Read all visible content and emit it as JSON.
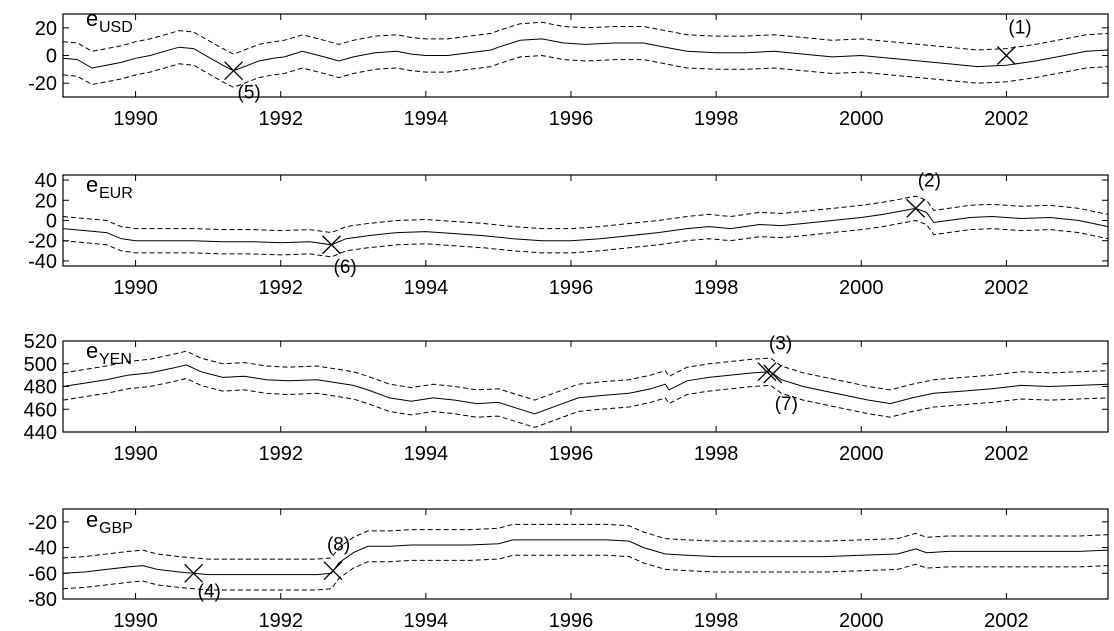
{
  "chart_data": [
    {
      "type": "line",
      "label_base": "e",
      "label_sub": "USD",
      "xlim": [
        1989.0,
        2003.4
      ],
      "ylim": [
        -30,
        30
      ],
      "yticks": [
        20,
        0,
        -20
      ],
      "xticks": [
        1990,
        1992,
        1994,
        1996,
        1998,
        2000,
        2002
      ],
      "band_halfwidth": 12,
      "series": [
        {
          "style": "solid",
          "points": [
            [
              1989.0,
              -2
            ],
            [
              1989.2,
              -3
            ],
            [
              1989.4,
              -9
            ],
            [
              1989.6,
              -7
            ],
            [
              1989.8,
              -5
            ],
            [
              1990.0,
              -2
            ],
            [
              1990.2,
              0
            ],
            [
              1990.4,
              3
            ],
            [
              1990.6,
              6
            ],
            [
              1990.8,
              5
            ],
            [
              1991.0,
              -1
            ],
            [
              1991.2,
              -7
            ],
            [
              1991.35,
              -11
            ],
            [
              1991.5,
              -8
            ],
            [
              1991.7,
              -4
            ],
            [
              1991.9,
              -2
            ],
            [
              1992.05,
              -1
            ],
            [
              1992.3,
              3
            ],
            [
              1992.6,
              -1
            ],
            [
              1992.8,
              -4
            ],
            [
              1993.0,
              -1
            ],
            [
              1993.3,
              2
            ],
            [
              1993.6,
              3
            ],
            [
              1993.8,
              1
            ],
            [
              1994.0,
              0
            ],
            [
              1994.3,
              0
            ],
            [
              1994.6,
              2
            ],
            [
              1994.9,
              4
            ],
            [
              1995.0,
              6
            ],
            [
              1995.3,
              11
            ],
            [
              1995.6,
              12
            ],
            [
              1995.9,
              9
            ],
            [
              1996.2,
              8
            ],
            [
              1996.6,
              9
            ],
            [
              1997.0,
              9
            ],
            [
              1997.3,
              6
            ],
            [
              1997.6,
              3
            ],
            [
              1998.0,
              2
            ],
            [
              1998.4,
              2
            ],
            [
              1998.8,
              3
            ],
            [
              1999.2,
              1
            ],
            [
              1999.6,
              -1
            ],
            [
              2000.0,
              0
            ],
            [
              2000.4,
              -2
            ],
            [
              2000.8,
              -4
            ],
            [
              2001.2,
              -6
            ],
            [
              2001.6,
              -8
            ],
            [
              2002.0,
              -7
            ],
            [
              2002.4,
              -4
            ],
            [
              2002.8,
              0
            ],
            [
              2003.1,
              3
            ],
            [
              2003.4,
              4
            ]
          ]
        }
      ],
      "markers": [
        {
          "x": 2002.0,
          "y": 0,
          "label": "(1)"
        },
        {
          "x": 1991.35,
          "y": -11,
          "label": "(5)"
        }
      ]
    },
    {
      "type": "line",
      "label_base": "e",
      "label_sub": "EUR",
      "xlim": [
        1989.0,
        2003.4
      ],
      "ylim": [
        -45,
        45
      ],
      "yticks": [
        40,
        20,
        0,
        -20,
        -40
      ],
      "xticks": [
        1990,
        1992,
        1994,
        1996,
        1998,
        2000,
        2002
      ],
      "band_halfwidth": 12,
      "series": [
        {
          "style": "solid",
          "points": [
            [
              1989.0,
              -8
            ],
            [
              1989.3,
              -10
            ],
            [
              1989.6,
              -12
            ],
            [
              1989.8,
              -18
            ],
            [
              1990.0,
              -20
            ],
            [
              1990.4,
              -20
            ],
            [
              1990.8,
              -20
            ],
            [
              1991.2,
              -21
            ],
            [
              1991.6,
              -21
            ],
            [
              1992.0,
              -22
            ],
            [
              1992.4,
              -21
            ],
            [
              1992.7,
              -24
            ],
            [
              1992.9,
              -18
            ],
            [
              1993.2,
              -15
            ],
            [
              1993.6,
              -12
            ],
            [
              1994.0,
              -11
            ],
            [
              1994.4,
              -13
            ],
            [
              1994.8,
              -15
            ],
            [
              1995.2,
              -18
            ],
            [
              1995.6,
              -20
            ],
            [
              1996.0,
              -20
            ],
            [
              1996.4,
              -18
            ],
            [
              1996.8,
              -15
            ],
            [
              1997.2,
              -12
            ],
            [
              1997.6,
              -8
            ],
            [
              1997.9,
              -6
            ],
            [
              1998.2,
              -8
            ],
            [
              1998.6,
              -4
            ],
            [
              1998.9,
              -5
            ],
            [
              1999.2,
              -3
            ],
            [
              1999.6,
              0
            ],
            [
              2000.0,
              3
            ],
            [
              2000.3,
              6
            ],
            [
              2000.6,
              10
            ],
            [
              2000.75,
              12
            ],
            [
              2000.9,
              8
            ],
            [
              2001.0,
              -2
            ],
            [
              2001.2,
              0
            ],
            [
              2001.5,
              3
            ],
            [
              2001.8,
              4
            ],
            [
              2002.2,
              2
            ],
            [
              2002.6,
              3
            ],
            [
              2003.0,
              0
            ],
            [
              2003.4,
              -6
            ]
          ]
        }
      ],
      "markers": [
        {
          "x": 2000.75,
          "y": 12,
          "label": "(2)"
        },
        {
          "x": 1992.7,
          "y": -24,
          "label": "(6)"
        }
      ]
    },
    {
      "type": "line",
      "label_base": "e",
      "label_sub": "YEN",
      "xlim": [
        1989.0,
        2003.4
      ],
      "ylim": [
        440,
        520
      ],
      "yticks": [
        520,
        500,
        480,
        460,
        440
      ],
      "xticks": [
        1990,
        1992,
        1994,
        1996,
        1998,
        2000,
        2002
      ],
      "band_halfwidth": 12,
      "series": [
        {
          "style": "solid",
          "points": [
            [
              1989.0,
              480
            ],
            [
              1989.3,
              483
            ],
            [
              1989.6,
              486
            ],
            [
              1989.9,
              490
            ],
            [
              1990.2,
              492
            ],
            [
              1990.5,
              496
            ],
            [
              1990.7,
              499
            ],
            [
              1990.9,
              493
            ],
            [
              1991.2,
              488
            ],
            [
              1991.5,
              489
            ],
            [
              1991.8,
              486
            ],
            [
              1992.1,
              485
            ],
            [
              1992.5,
              486
            ],
            [
              1992.8,
              483
            ],
            [
              1993.0,
              481
            ],
            [
              1993.2,
              477
            ],
            [
              1993.5,
              470
            ],
            [
              1993.8,
              467
            ],
            [
              1994.1,
              470
            ],
            [
              1994.4,
              468
            ],
            [
              1994.7,
              465
            ],
            [
              1995.0,
              466
            ],
            [
              1995.3,
              460
            ],
            [
              1995.5,
              456
            ],
            [
              1995.8,
              463
            ],
            [
              1996.1,
              470
            ],
            [
              1996.4,
              472
            ],
            [
              1996.8,
              474
            ],
            [
              1997.1,
              478
            ],
            [
              1997.3,
              482
            ],
            [
              1997.35,
              477
            ],
            [
              1997.6,
              485
            ],
            [
              1997.9,
              488
            ],
            [
              1998.2,
              490
            ],
            [
              1998.5,
              492
            ],
            [
              1998.75,
              493
            ],
            [
              1998.9,
              486
            ],
            [
              1999.2,
              480
            ],
            [
              1999.5,
              476
            ],
            [
              1999.8,
              472
            ],
            [
              2000.1,
              468
            ],
            [
              2000.4,
              465
            ],
            [
              2000.7,
              470
            ],
            [
              2001.0,
              474
            ],
            [
              2001.4,
              476
            ],
            [
              2001.8,
              478
            ],
            [
              2002.2,
              481
            ],
            [
              2002.6,
              480
            ],
            [
              2003.0,
              481
            ],
            [
              2003.4,
              482
            ]
          ]
        }
      ],
      "markers": [
        {
          "x": 1998.7,
          "y": 493,
          "label": "(3)"
        },
        {
          "x": 1998.78,
          "y": 491,
          "label": "(7)"
        }
      ]
    },
    {
      "type": "line",
      "label_base": "e",
      "label_sub": "GBP",
      "xlim": [
        1989.0,
        2003.4
      ],
      "ylim": [
        -80,
        -10
      ],
      "yticks": [
        -20,
        -40,
        -60,
        -80
      ],
      "xticks": [
        1990,
        1992,
        1994,
        1996,
        1998,
        2000,
        2002
      ],
      "band_halfwidth": 12,
      "series": [
        {
          "style": "solid",
          "points": [
            [
              1989.0,
              -60
            ],
            [
              1989.3,
              -59
            ],
            [
              1989.6,
              -57
            ],
            [
              1989.9,
              -55
            ],
            [
              1990.1,
              -54
            ],
            [
              1990.3,
              -57
            ],
            [
              1990.6,
              -59
            ],
            [
              1990.8,
              -60
            ],
            [
              1991.0,
              -61
            ],
            [
              1991.5,
              -61
            ],
            [
              1992.0,
              -61
            ],
            [
              1992.5,
              -61
            ],
            [
              1992.7,
              -60
            ],
            [
              1992.8,
              -52
            ],
            [
              1993.0,
              -44
            ],
            [
              1993.2,
              -39
            ],
            [
              1993.5,
              -39
            ],
            [
              1993.8,
              -38
            ],
            [
              1994.2,
              -38
            ],
            [
              1994.6,
              -38
            ],
            [
              1995.0,
              -37
            ],
            [
              1995.2,
              -34
            ],
            [
              1995.6,
              -34
            ],
            [
              1996.0,
              -34
            ],
            [
              1996.5,
              -34
            ],
            [
              1996.8,
              -35
            ],
            [
              1997.0,
              -40
            ],
            [
              1997.3,
              -45
            ],
            [
              1997.6,
              -46
            ],
            [
              1998.0,
              -47
            ],
            [
              1998.5,
              -47
            ],
            [
              1999.0,
              -47
            ],
            [
              1999.5,
              -47
            ],
            [
              2000.0,
              -46
            ],
            [
              2000.5,
              -45
            ],
            [
              2000.75,
              -41
            ],
            [
              2000.9,
              -44
            ],
            [
              2001.2,
              -43
            ],
            [
              2001.6,
              -43
            ],
            [
              2002.0,
              -43
            ],
            [
              2002.5,
              -43
            ],
            [
              2003.0,
              -43
            ],
            [
              2003.4,
              -42
            ]
          ]
        }
      ],
      "markers": [
        {
          "x": 1990.8,
          "y": -60,
          "label": "(4)"
        },
        {
          "x": 1992.72,
          "y": -58,
          "label": "(8)"
        }
      ]
    }
  ]
}
